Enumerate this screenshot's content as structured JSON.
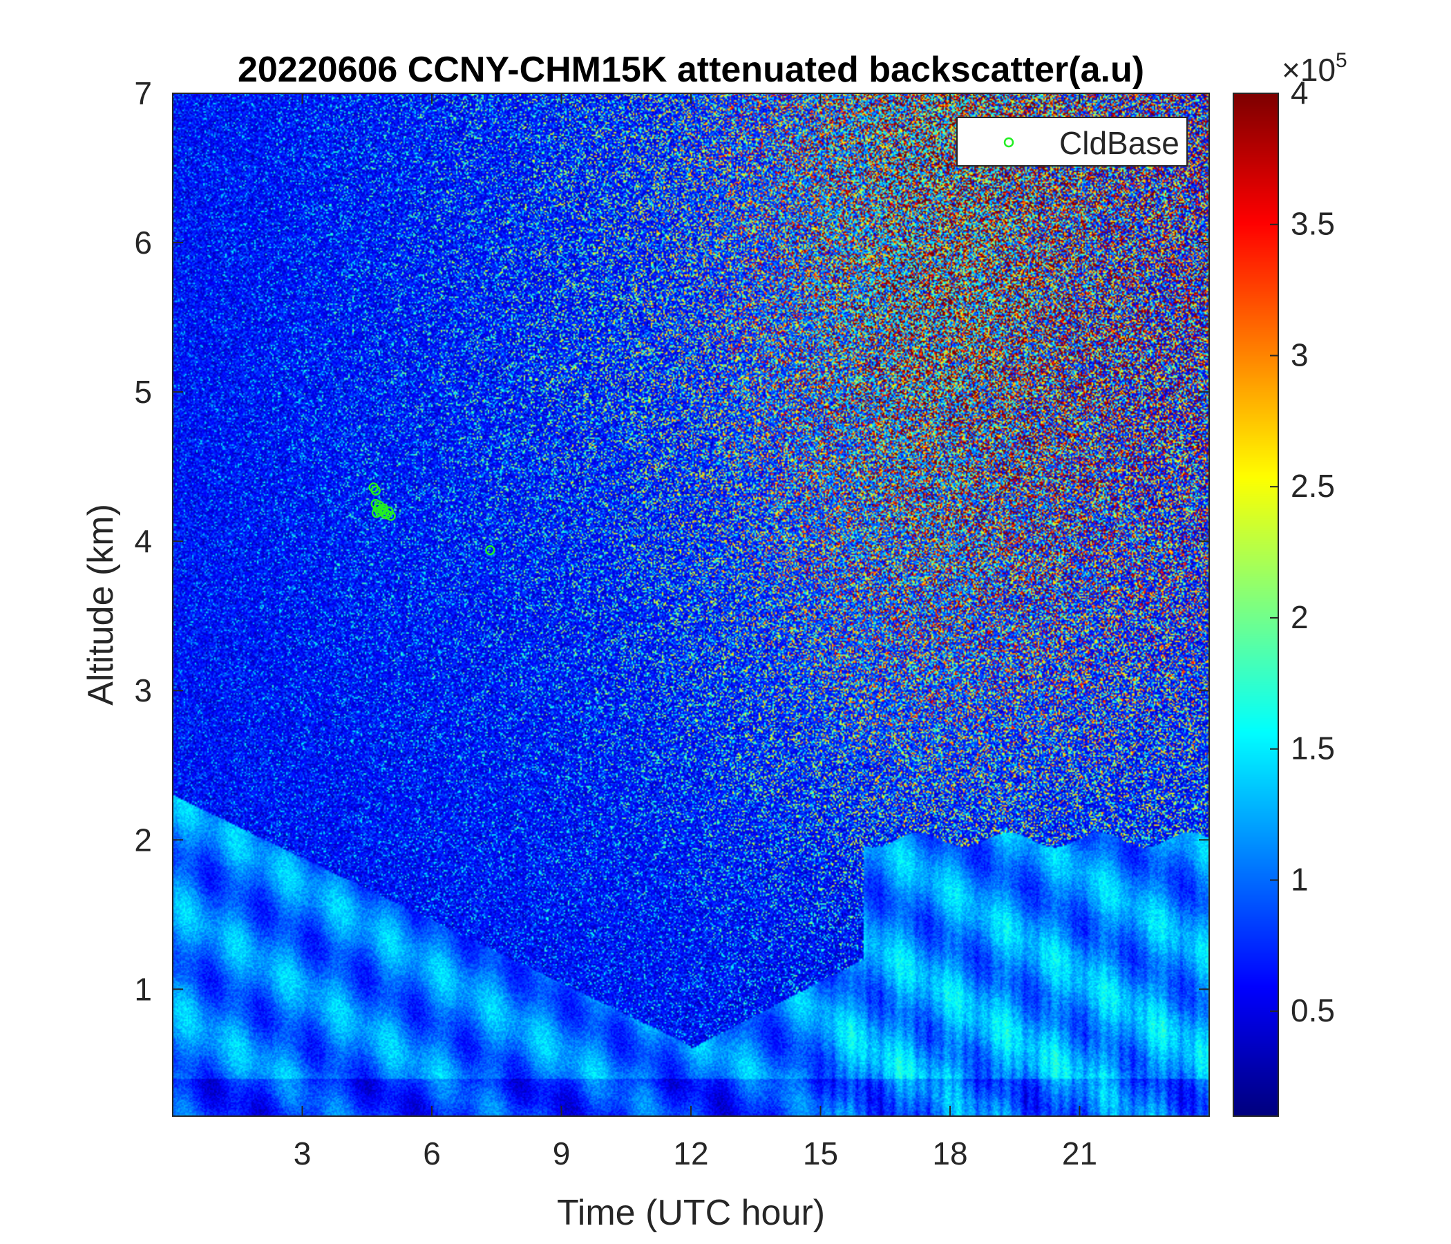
{
  "chart_data": {
    "type": "heatmap",
    "title": "20220606 CCNY-CHM15K attenuated backscatter(a.u)",
    "xlabel": "Time (UTC hour)",
    "ylabel": "Altitude (km)",
    "xlim": [
      0,
      24
    ],
    "ylim": [
      0.15,
      7
    ],
    "x_ticks": [
      3,
      6,
      9,
      12,
      15,
      18,
      21
    ],
    "y_ticks": [
      1,
      2,
      3,
      4,
      5,
      6,
      7
    ],
    "colormap": "jet",
    "colorbar": {
      "range": [
        0.1,
        4
      ],
      "ticks": [
        0.5,
        1,
        1.5,
        2,
        2.5,
        3,
        3.5,
        4
      ],
      "exponent_label": "×10",
      "exponent": "5"
    },
    "legend": {
      "position": "top-right",
      "entries": [
        "CldBase"
      ],
      "marker": "circle",
      "color": "#22ee22"
    },
    "series": [
      {
        "name": "CldBase",
        "type": "scatter",
        "points": [
          [
            4.65,
            4.36
          ],
          [
            4.7,
            4.34
          ],
          [
            4.7,
            4.25
          ],
          [
            4.75,
            4.22
          ],
          [
            4.8,
            4.2
          ],
          [
            4.85,
            4.21
          ],
          [
            4.9,
            4.19
          ],
          [
            4.95,
            4.18
          ],
          [
            5.0,
            4.2
          ],
          [
            5.05,
            4.17
          ],
          [
            4.78,
            4.24
          ],
          [
            4.88,
            4.22
          ],
          [
            4.72,
            4.19
          ],
          [
            7.35,
            3.94
          ]
        ]
      }
    ]
  }
}
